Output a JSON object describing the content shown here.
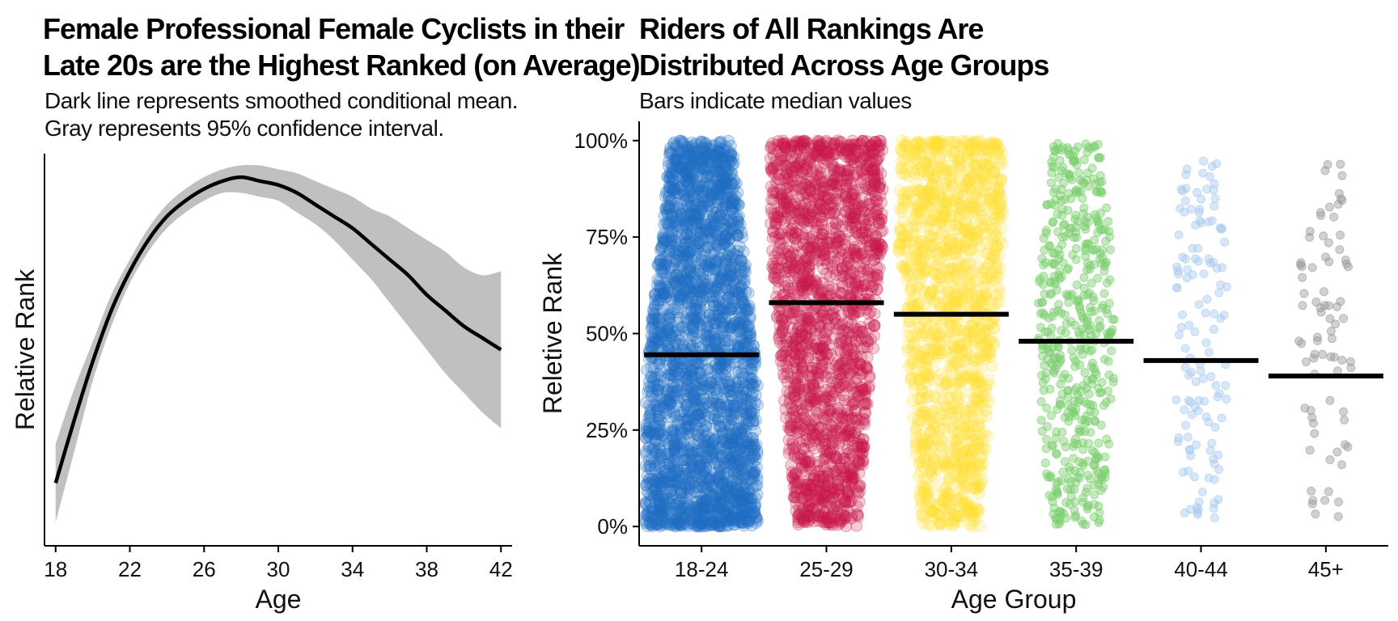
{
  "chart_data": [
    {
      "type": "line",
      "title_lines": [
        "Female Professional Female Cyclists in their",
        "Late 20s are the Highest Ranked (on Average)"
      ],
      "subtitle_lines": [
        "Dark line represents smoothed conditional mean.",
        "Gray represents 95% confidence interval."
      ],
      "xlabel": "Age",
      "ylabel": "Relative Rank",
      "xlim": [
        17.4,
        42.6
      ],
      "ylim": [
        0.0,
        1.0
      ],
      "x_ticks": [
        18,
        22,
        26,
        30,
        34,
        38,
        42
      ],
      "x_tick_labels": [
        "18",
        "22",
        "26",
        "30",
        "34",
        "38",
        "42"
      ],
      "y_ticks_shown": false,
      "grid": false,
      "series": [
        {
          "x": [
            18,
            19,
            20,
            21,
            22,
            23,
            24,
            25,
            26,
            27,
            28,
            29,
            30,
            31,
            32,
            33,
            34,
            35,
            36,
            37,
            38,
            39,
            40,
            41,
            42
          ],
          "y": [
            0.16,
            0.32,
            0.47,
            0.6,
            0.7,
            0.78,
            0.84,
            0.88,
            0.91,
            0.93,
            0.94,
            0.93,
            0.92,
            0.9,
            0.87,
            0.84,
            0.81,
            0.77,
            0.73,
            0.69,
            0.64,
            0.6,
            0.56,
            0.53,
            0.5
          ],
          "ci_lower": [
            0.06,
            0.24,
            0.42,
            0.56,
            0.67,
            0.75,
            0.81,
            0.85,
            0.88,
            0.9,
            0.9,
            0.89,
            0.88,
            0.85,
            0.82,
            0.78,
            0.73,
            0.68,
            0.62,
            0.56,
            0.5,
            0.44,
            0.39,
            0.34,
            0.3
          ],
          "ci_upper": [
            0.26,
            0.4,
            0.52,
            0.64,
            0.73,
            0.81,
            0.87,
            0.91,
            0.94,
            0.96,
            0.97,
            0.97,
            0.96,
            0.95,
            0.93,
            0.91,
            0.89,
            0.86,
            0.84,
            0.81,
            0.78,
            0.75,
            0.71,
            0.69,
            0.7
          ]
        }
      ],
      "line_color": "#000000",
      "ci_color": "#c0c0c0"
    },
    {
      "type": "scatter",
      "title_lines": [
        "Riders of All Rankings Are",
        "Distributed Across Age Groups"
      ],
      "subtitle_lines": [
        "Bars indicate median values"
      ],
      "xlabel": "Age Group",
      "ylabel": "Reletive Rank",
      "categories": [
        "18-24",
        "25-29",
        "30-34",
        "35-39",
        "40-44",
        "45+"
      ],
      "ylim": [
        -0.05,
        1.05
      ],
      "y_ticks": [
        0,
        0.25,
        0.5,
        0.75,
        1.0
      ],
      "y_tick_labels": [
        "0%",
        "25%",
        "50%",
        "75%",
        "100%"
      ],
      "grid": false,
      "medians": [
        0.445,
        0.58,
        0.55,
        0.48,
        0.43,
        0.39
      ],
      "colors": [
        "#1f6fc5",
        "#c8194a",
        "#ffe135",
        "#7ccf6e",
        "#a9c9ee",
        "#9a9a9a"
      ],
      "point_counts": [
        2600,
        1800,
        1300,
        520,
        130,
        80
      ],
      "max_half_width": [
        0.45,
        0.45,
        0.42,
        0.31,
        0.22,
        0.22
      ]
    }
  ]
}
